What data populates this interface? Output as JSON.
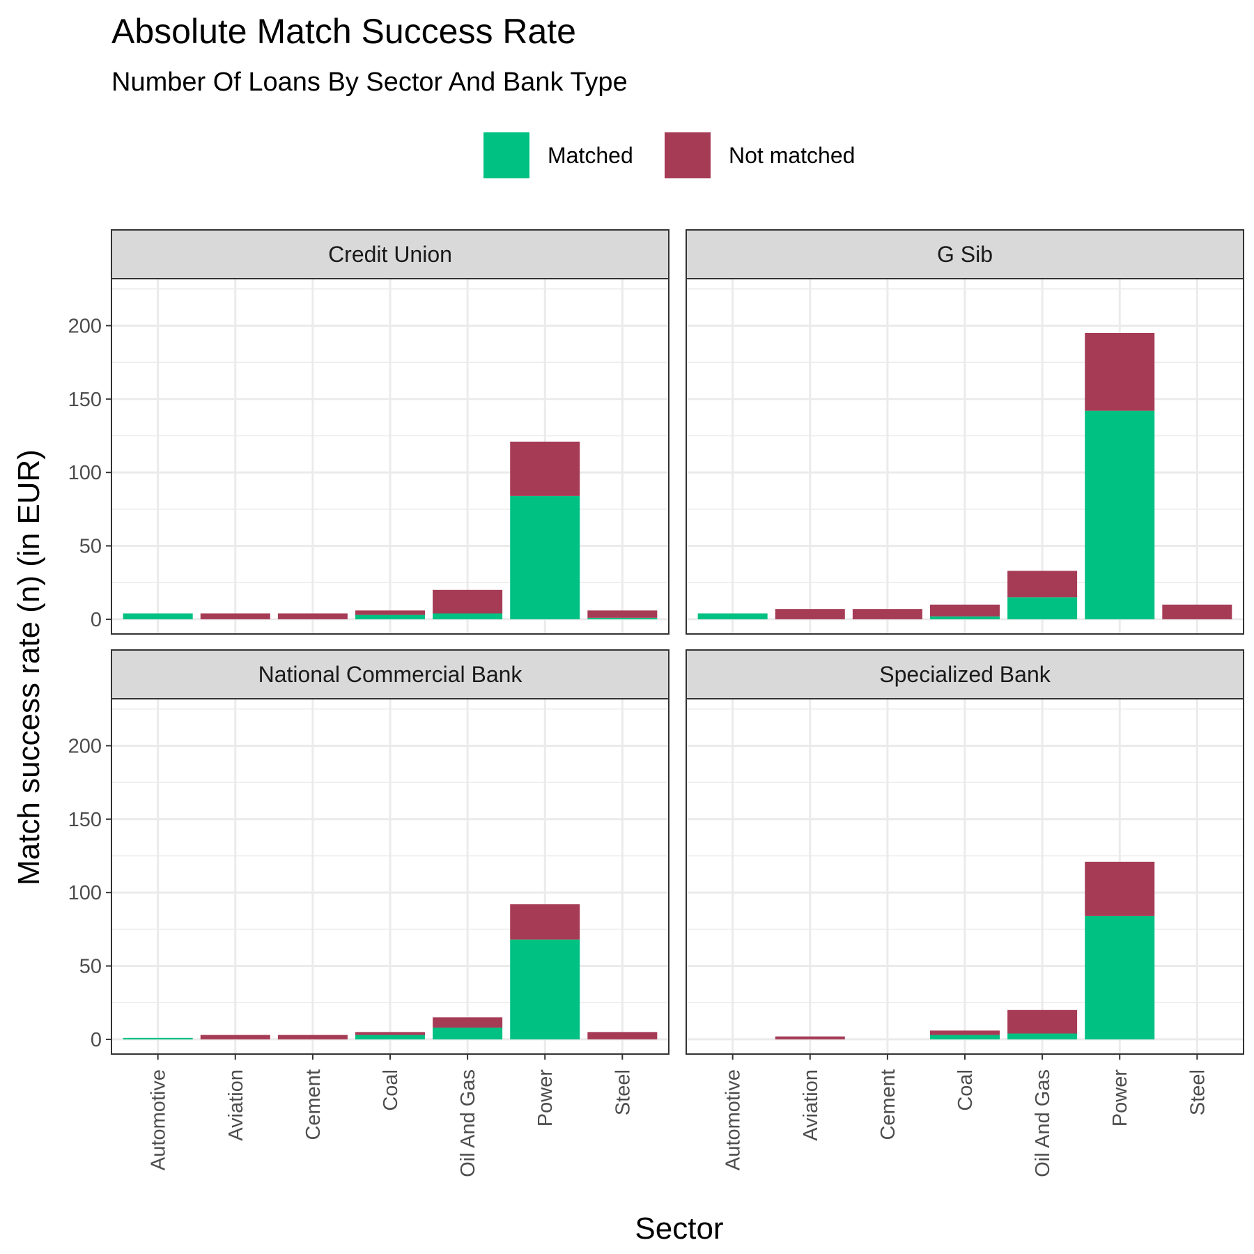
{
  "chart_data": {
    "type": "bar",
    "stacked": true,
    "title": "Absolute Match Success Rate",
    "subtitle": "Number Of Loans By Sector And Bank Type",
    "xlabel": "Sector",
    "ylabel": "Match success rate (n) (in EUR)",
    "ylim": [
      -10,
      232
    ],
    "yticks": [
      0,
      50,
      100,
      150,
      200
    ],
    "grid": true,
    "legend_position": "top",
    "categories": [
      "Automotive",
      "Aviation",
      "Cement",
      "Coal",
      "Oil And Gas",
      "Power",
      "Steel"
    ],
    "series": [
      {
        "name": "Matched",
        "color": "#00c082"
      },
      {
        "name": "Not matched",
        "color": "#a63b55"
      }
    ],
    "facets": [
      {
        "name": "Credit Union",
        "matched": [
          4,
          0,
          0,
          3,
          4,
          84,
          1
        ],
        "not_matched": [
          0,
          4,
          4,
          3,
          16,
          37,
          5
        ]
      },
      {
        "name": "G Sib",
        "matched": [
          4,
          0,
          0,
          2,
          15,
          142,
          0
        ],
        "not_matched": [
          0,
          7,
          7,
          8,
          18,
          53,
          10
        ]
      },
      {
        "name": "National Commercial Bank",
        "matched": [
          1,
          0,
          0,
          3,
          8,
          68,
          0
        ],
        "not_matched": [
          0,
          3,
          3,
          2,
          7,
          24,
          5
        ]
      },
      {
        "name": "Specialized Bank",
        "matched": [
          0,
          0,
          0,
          3,
          4,
          84,
          0
        ],
        "not_matched": [
          0,
          2,
          0,
          3,
          16,
          37,
          0
        ]
      }
    ]
  }
}
